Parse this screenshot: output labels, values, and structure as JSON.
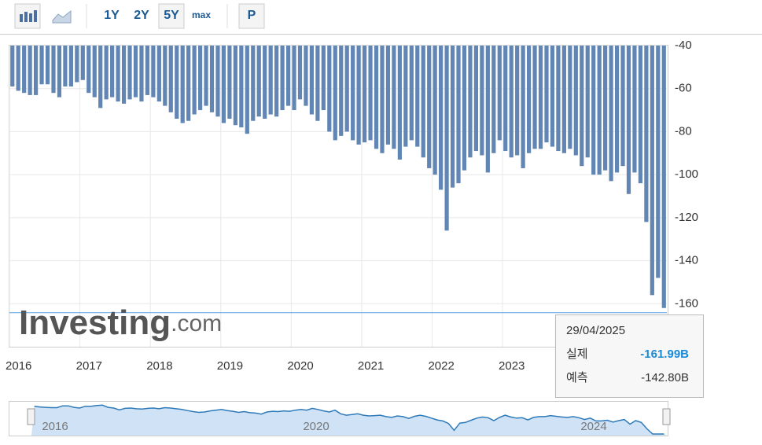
{
  "toolbar": {
    "buttons": [
      "1Y",
      "2Y",
      "5Y",
      "max",
      "P"
    ],
    "active": "5Y"
  },
  "chart_data": {
    "type": "bar",
    "categories": [
      "2016",
      null,
      null,
      null,
      null,
      null,
      null,
      null,
      null,
      null,
      null,
      null,
      "2017",
      null,
      null,
      null,
      null,
      null,
      null,
      null,
      null,
      null,
      null,
      null,
      "2018",
      null,
      null,
      null,
      null,
      null,
      null,
      null,
      null,
      null,
      null,
      null,
      "2019",
      null,
      null,
      null,
      null,
      null,
      null,
      null,
      null,
      null,
      null,
      null,
      "2020",
      null,
      null,
      null,
      null,
      null,
      null,
      null,
      null,
      null,
      null,
      null,
      "2021",
      null,
      null,
      null,
      null,
      null,
      null,
      null,
      null,
      null,
      null,
      null,
      "2022",
      null,
      null,
      null,
      null,
      null,
      null,
      null,
      null,
      null,
      null,
      null,
      "2023",
      null,
      null,
      null,
      null,
      null,
      null,
      null,
      null,
      null,
      null,
      null,
      null,
      null,
      null,
      null,
      null,
      null,
      null,
      null,
      null,
      null,
      null,
      null,
      null,
      null,
      null,
      null
    ],
    "series": [
      {
        "color": "#6186b3",
        "values": [
          -59,
          -61,
          -62,
          -63,
          -63,
          -58,
          -58,
          -62,
          -64,
          -59,
          -59,
          -57,
          -56,
          -62,
          -64,
          -69,
          -65,
          -64,
          -66,
          -67,
          -65,
          -64,
          -66,
          -63,
          -64,
          -66,
          -68,
          -71,
          -74,
          -76,
          -75,
          -72,
          -70,
          -68,
          -71,
          -73,
          -76,
          -74,
          -77,
          -78,
          -81,
          -75,
          -73,
          -74,
          -72,
          -73,
          -70,
          -68,
          -70,
          -65,
          -68,
          -72,
          -75,
          -70,
          -80,
          -84,
          -82,
          -80,
          -84,
          -86,
          -85,
          -84,
          -88,
          -90,
          -86,
          -88,
          -93,
          -87,
          -84,
          -87,
          -92,
          -97,
          -100,
          -107,
          -126,
          -106,
          -104,
          -98,
          -92,
          -89,
          -91,
          -99,
          -90,
          -84,
          -89,
          -92,
          -91,
          -97,
          -90,
          -88,
          -88,
          -85,
          -87,
          -89,
          -90,
          -88,
          -91,
          -96,
          -92,
          -100,
          -100,
          -98,
          -103,
          -99,
          -96,
          -109,
          -99,
          -104,
          -122,
          -156,
          -148,
          -161.99
        ]
      }
    ],
    "ylim": [
      -180,
      -40
    ],
    "yticks": [
      -40,
      -60,
      -80,
      -100,
      -120,
      -140,
      -160
    ],
    "grid": true,
    "watermark": {
      "brand": "Investing",
      "suffix": ".com"
    },
    "tooltip": {
      "date": "29/04/2025",
      "actual_label": "실제",
      "actual": "-161.99B",
      "forecast_label": "예측",
      "forecast": "-142.80B"
    },
    "navigator": {
      "labels": [
        "2016",
        "2020",
        "2024"
      ]
    }
  }
}
